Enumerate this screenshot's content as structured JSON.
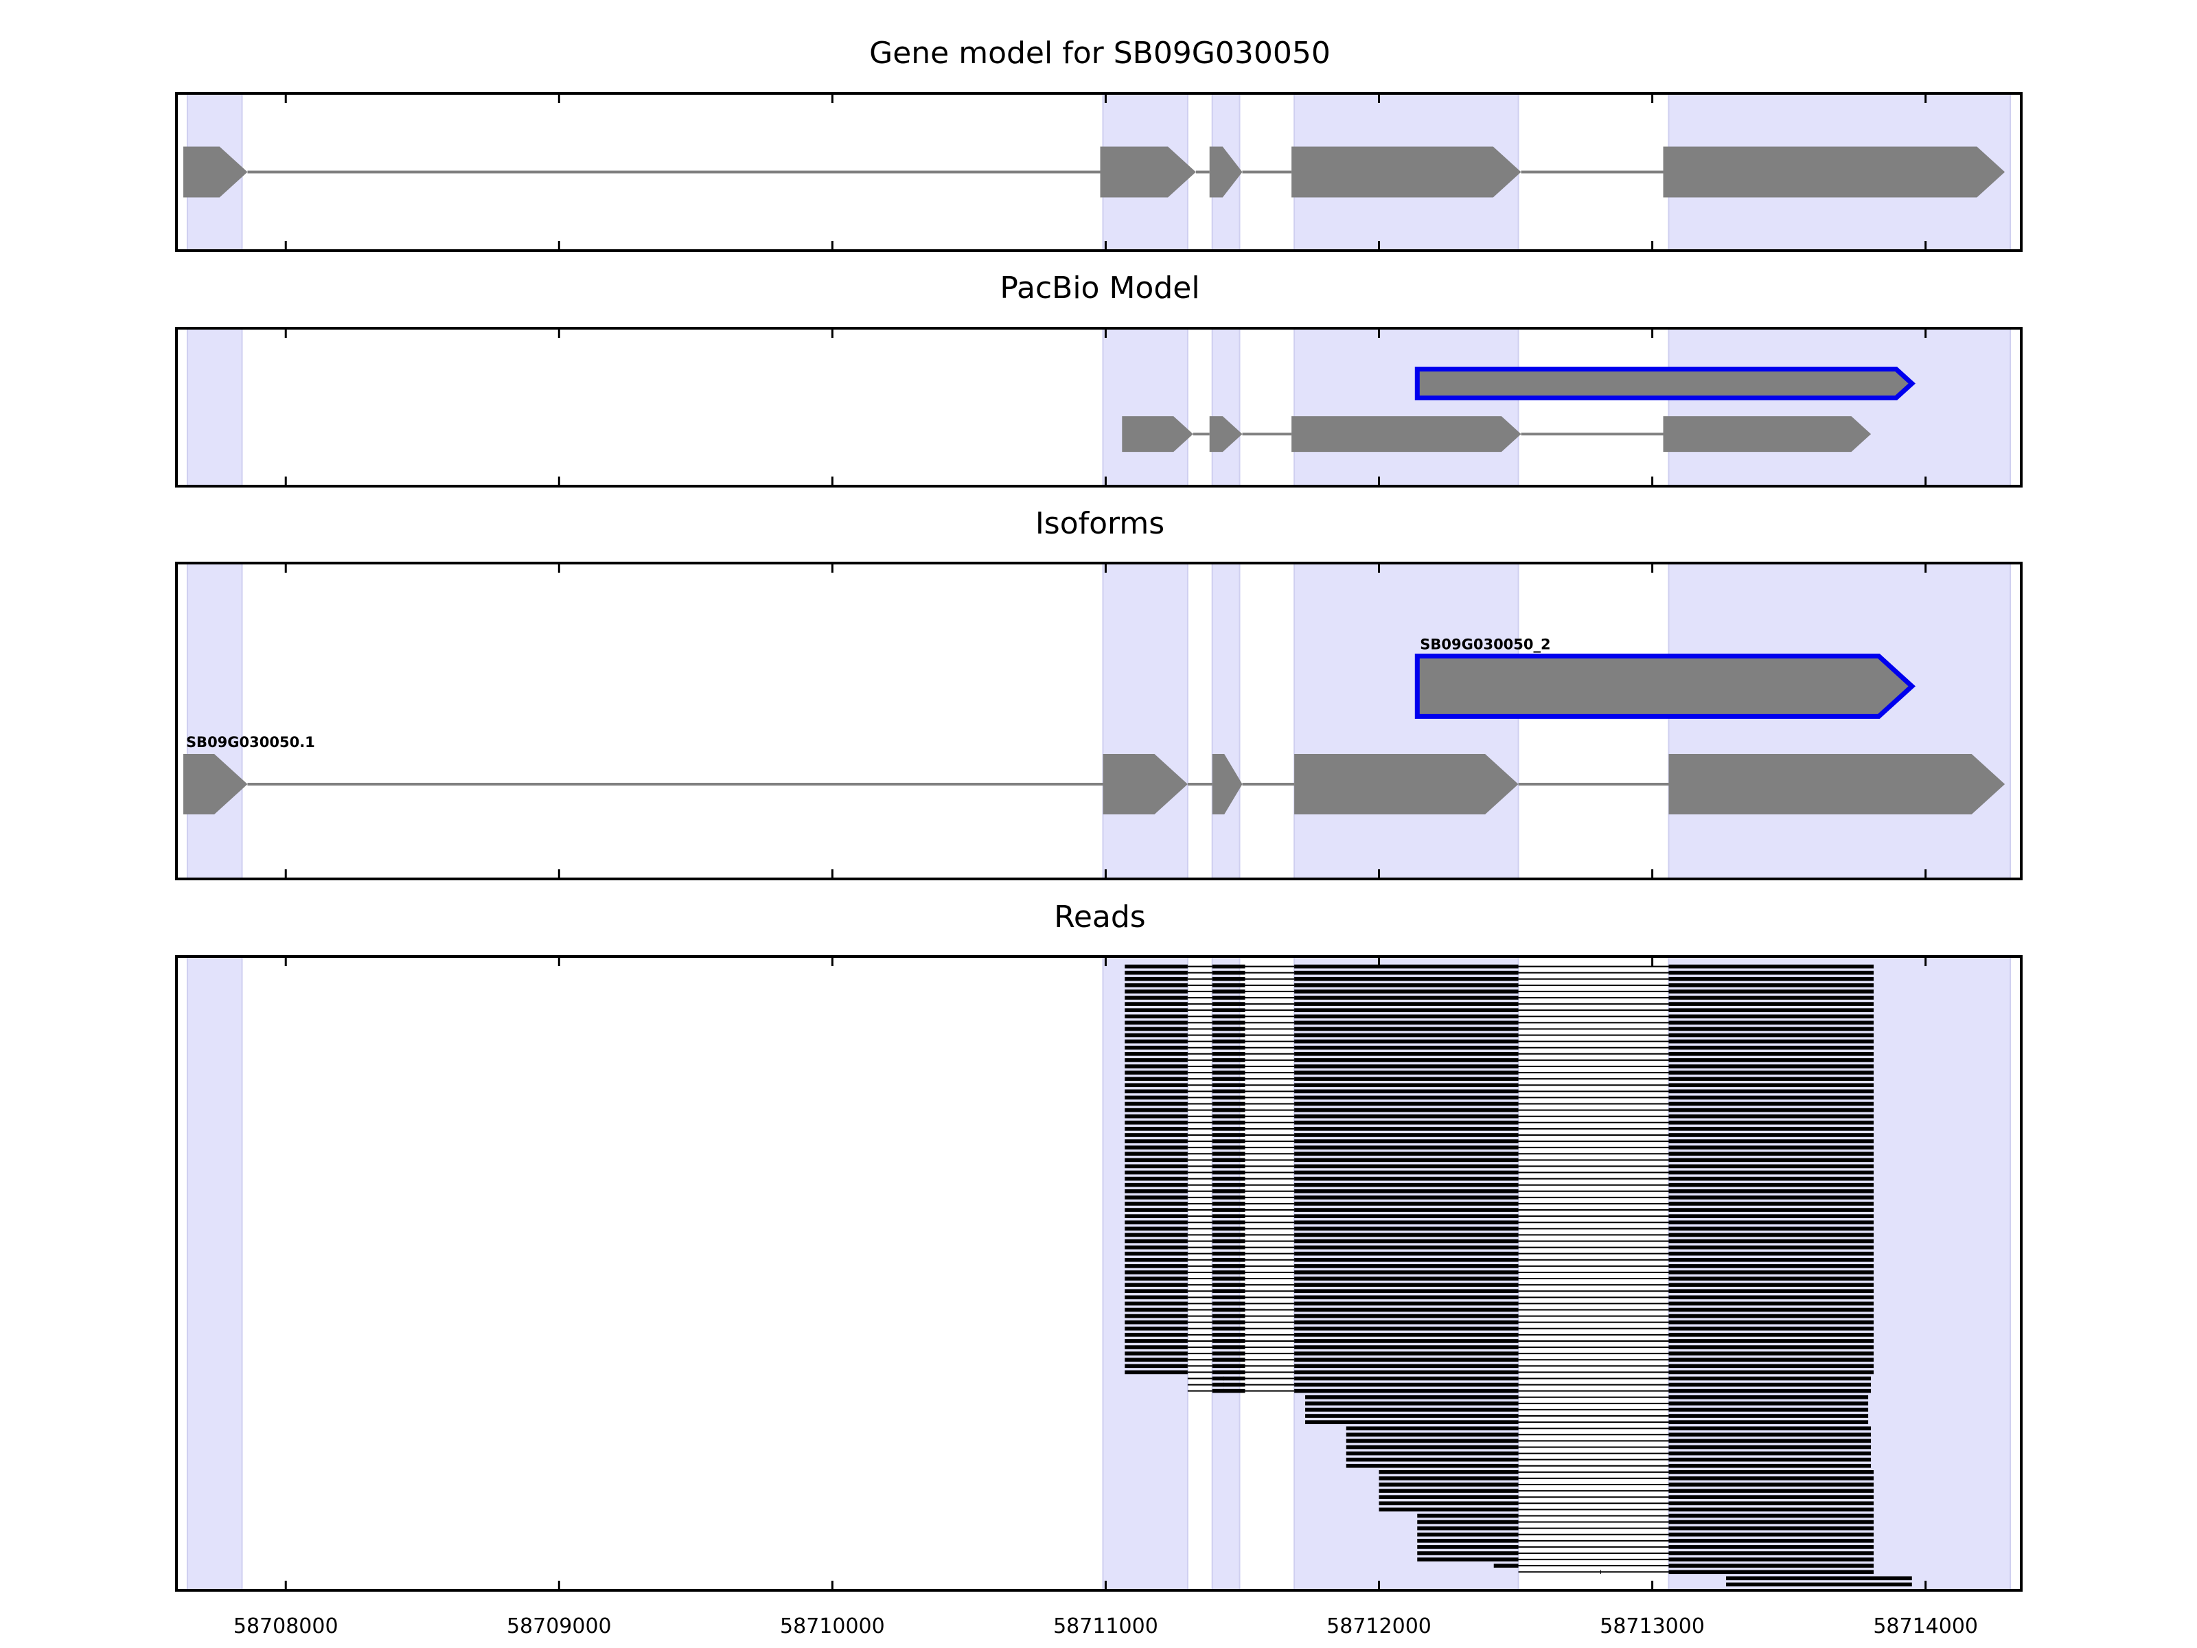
{
  "chart_data": {
    "type": "gene_track",
    "x_range": [
      58707600,
      58714350
    ],
    "x_ticks": [
      58708000,
      58709000,
      58710000,
      58711000,
      58712000,
      58713000,
      58714000
    ],
    "x_tick_labels": [
      "58708000",
      "58709000",
      "58710000",
      "58711000",
      "58712000",
      "58713000",
      "58714000"
    ],
    "highlight_color": "#e2e2fb",
    "exon_color": "#808080",
    "intron_color": "#808080",
    "outline_color": "#0000ee",
    "read_color": "#000000",
    "highlight_regions": [
      [
        58707640,
        58707840
      ],
      [
        58710990,
        58711300
      ],
      [
        58711390,
        58711490
      ],
      [
        58711690,
        58712510
      ],
      [
        58713060,
        58714310
      ]
    ],
    "panels": [
      {
        "title": "Gene model for SB09G030050",
        "y_max": 1,
        "tracks": [
          {
            "y": 0.5,
            "outlined": false,
            "label": "",
            "exons": [
              [
                58707625,
                58707860
              ],
              [
                58710980,
                58711330
              ],
              [
                58711380,
                58711500
              ],
              [
                58711680,
                58712520
              ],
              [
                58713040,
                58714290
              ]
            ]
          }
        ]
      },
      {
        "title": "PacBio Model",
        "y_max": 1,
        "tracks": [
          {
            "y": 0.35,
            "outlined": true,
            "label": "",
            "exons": [
              [
                58712140,
                58713950
              ]
            ]
          },
          {
            "y": 0.67,
            "outlined": false,
            "label": "",
            "exons": [
              [
                58711060,
                58711320
              ],
              [
                58711380,
                58711500
              ],
              [
                58711680,
                58712520
              ],
              [
                58713040,
                58713800
              ]
            ]
          }
        ]
      },
      {
        "title": "Isoforms",
        "y_max": 1,
        "tracks": [
          {
            "y": 0.39,
            "outlined": true,
            "label": "SB09G030050_2",
            "exons": [
              [
                58712140,
                58713950
              ]
            ]
          },
          {
            "y": 0.7,
            "outlined": false,
            "label": "SB09G030050.1",
            "exons": [
              [
                58707625,
                58707860
              ],
              [
                58710990,
                58711300
              ],
              [
                58711390,
                58711500
              ],
              [
                58711690,
                58712510
              ],
              [
                58713060,
                58714290
              ]
            ]
          }
        ]
      },
      {
        "title": "Reads",
        "n_rows": 100,
        "read_blocks": {
          "full": [
            [
              0,
              58711300
            ],
            [
              58711390,
              58711510
            ],
            [
              58711690,
              58712510
            ],
            [
              58713060,
              0
            ]
          ],
          "start_exon3": [
            [
              0,
              58712510
            ],
            [
              58713060,
              0
            ]
          ],
          "start_exon4": [
            [
              0,
              0
            ]
          ]
        },
        "reads": [
          {
            "rows": [
              0,
              65
            ],
            "group": "full",
            "start": 58711070,
            "end": 58713810
          },
          {
            "rows": [
              66,
              68
            ],
            "group": "full",
            "start": 58711430,
            "end": 58713800
          },
          {
            "rows": [
              69,
              73
            ],
            "group": "start_exon3",
            "start": 58711730,
            "end": 58713790
          },
          {
            "rows": [
              74,
              80
            ],
            "group": "start_exon3",
            "start": 58711880,
            "end": 58713800
          },
          {
            "rows": [
              81,
              87
            ],
            "group": "start_exon3",
            "start": 58712000,
            "end": 58713810
          },
          {
            "rows": [
              88,
              95
            ],
            "group": "start_exon3",
            "start": 58712140,
            "end": 58713810
          },
          {
            "rows": [
              96,
              96
            ],
            "group": "start_exon3",
            "start": 58712420,
            "end": 58713810
          },
          {
            "rows": [
              97,
              97
            ],
            "group": "start_exon3",
            "start": 58712810,
            "end": 58713810
          },
          {
            "rows": [
              98,
              99
            ],
            "group": "start_exon4",
            "start": 58713270,
            "end": 58713950
          }
        ]
      }
    ]
  }
}
